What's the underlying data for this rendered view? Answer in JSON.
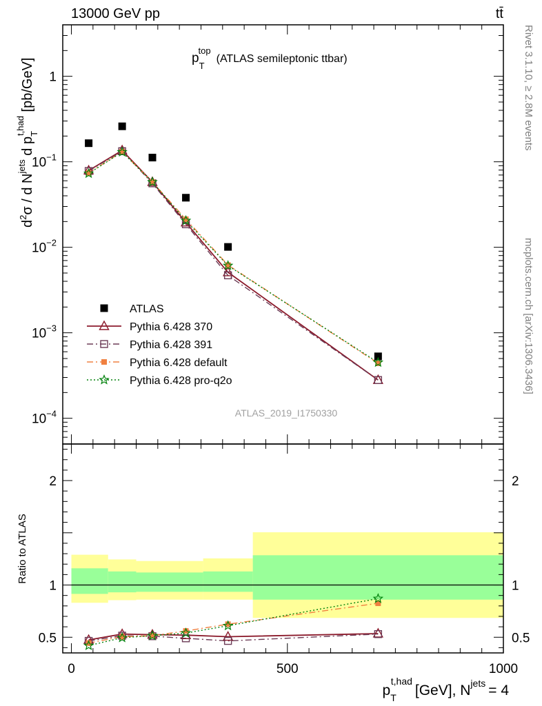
{
  "header": {
    "process": "13000 GeV pp",
    "channel": "tt̄"
  },
  "side_labels": {
    "rivet": "Rivet 3.1.10, ≥ 2.8M events",
    "mcplots": "mcplots.cern.ch [arXiv:1306.3436]"
  },
  "analysis_id": "ATLAS_2019_I1750330",
  "chart_data": [
    {
      "panel": "main",
      "type": "scatter",
      "title": "p_T^top (ATLAS semileptonic ttbar)",
      "title_parts": {
        "main": "p",
        "sub": "T",
        "sup": "top",
        "rest": "(ATLAS semileptonic ttbar)"
      },
      "ylabel": "d²σ / d N^jets d p_T^t,had [pb/GeV]",
      "y_scale": "log",
      "xlim": [
        -20,
        1000
      ],
      "ylim": [
        5e-05,
        4
      ],
      "y_ticks": [
        {
          "value": 1,
          "label": "1"
        },
        {
          "value": 0.1,
          "base": "10",
          "exp": "−1"
        },
        {
          "value": 0.01,
          "base": "10",
          "exp": "−2"
        },
        {
          "value": 0.001,
          "base": "10",
          "exp": "−3"
        },
        {
          "value": 0.0001,
          "base": "10",
          "exp": "−4"
        }
      ],
      "legend_position": "lower-left",
      "series": [
        {
          "name": "ATLAS",
          "marker": "filled-square",
          "color": "#000000",
          "x": [
            40,
            117.5,
            187.5,
            265,
            362.5,
            710
          ],
          "y": [
            0.165,
            0.26,
            0.112,
            0.038,
            0.0101,
            0.00053
          ]
        },
        {
          "name": "Pythia 6.428 370",
          "marker": "open-triangle",
          "line": "solid",
          "color": "#8b1a2b",
          "x": [
            40,
            117.5,
            187.5,
            265,
            362.5,
            710
          ],
          "y": [
            0.079,
            0.136,
            0.058,
            0.0195,
            0.0051,
            0.00028
          ]
        },
        {
          "name": "Pythia 6.428 391",
          "marker": "open-square",
          "line": "dash-dot",
          "color": "#6b3a55",
          "x": [
            40,
            117.5,
            187.5,
            265,
            362.5,
            710
          ],
          "y": [
            0.078,
            0.133,
            0.056,
            0.0186,
            0.0047,
            0.00028
          ]
        },
        {
          "name": "Pythia 6.428 default",
          "marker": "filled-square-small",
          "line": "dash-dot",
          "color": "#f08040",
          "x": [
            40,
            117.5,
            187.5,
            265,
            362.5,
            710
          ],
          "y": [
            0.074,
            0.131,
            0.058,
            0.0213,
            0.0062,
            0.00044
          ]
        },
        {
          "name": "Pythia 6.428 pro-q2o",
          "marker": "open-star",
          "line": "dotted",
          "color": "#00800a",
          "x": [
            40,
            117.5,
            187.5,
            265,
            362.5,
            710
          ],
          "y": [
            0.073,
            0.13,
            0.058,
            0.0205,
            0.0061,
            0.00045
          ]
        }
      ]
    },
    {
      "panel": "ratio",
      "type": "line",
      "ylabel": "Ratio to ATLAS",
      "xlabel": "p_T^t,had [GeV], N^jets = 4",
      "xlabel_parts": {
        "main": "p",
        "sub": "T",
        "sup": "t,had",
        "rest": "[GeV], N",
        "sup2": "jets",
        "tail": "= 4"
      },
      "xlim": [
        -20,
        1000
      ],
      "ylim": [
        0.35,
        2.35
      ],
      "x_ticks": [
        0,
        500,
        1000
      ],
      "y_ticks": [
        0.5,
        1,
        2
      ],
      "reference_line": 1,
      "bands": [
        {
          "x0": 0,
          "x1": 85,
          "outer": [
            0.83,
            1.29
          ],
          "inner": [
            0.915,
            1.16
          ]
        },
        {
          "x0": 85,
          "x1": 150,
          "outer": [
            0.855,
            1.245
          ],
          "inner": [
            0.93,
            1.13
          ]
        },
        {
          "x0": 150,
          "x1": 305,
          "outer": [
            0.86,
            1.23
          ],
          "inner": [
            0.935,
            1.12
          ]
        },
        {
          "x0": 305,
          "x1": 420,
          "outer": [
            0.86,
            1.255
          ],
          "inner": [
            0.935,
            1.13
          ]
        },
        {
          "x0": 420,
          "x1": 1000,
          "outer": [
            0.685,
            1.505
          ],
          "inner": [
            0.86,
            1.285
          ]
        }
      ],
      "band_colors": {
        "outer": "#ffff99",
        "inner": "#99ff99"
      },
      "series": [
        {
          "name": "Pythia 6.428 370",
          "marker": "open-triangle",
          "line": "solid",
          "color": "#8b1a2b",
          "x": [
            40,
            117.5,
            187.5,
            265,
            362.5,
            710
          ],
          "y": [
            0.475,
            0.53,
            0.525,
            0.52,
            0.505,
            0.535
          ]
        },
        {
          "name": "Pythia 6.428 391",
          "marker": "open-square",
          "line": "dash-dot",
          "color": "#6b3a55",
          "x": [
            40,
            117.5,
            187.5,
            265,
            362.5,
            710
          ],
          "y": [
            0.465,
            0.515,
            0.51,
            0.49,
            0.465,
            0.53
          ]
        },
        {
          "name": "Pythia 6.428 default",
          "marker": "filled-square-small",
          "line": "dash-dot",
          "color": "#f08040",
          "x": [
            40,
            117.5,
            187.5,
            265,
            362.5,
            710
          ],
          "y": [
            0.445,
            0.505,
            0.515,
            0.56,
            0.625,
            0.825
          ]
        },
        {
          "name": "Pythia 6.428 pro-q2o",
          "marker": "open-star",
          "line": "dotted",
          "color": "#00800a",
          "x": [
            40,
            117.5,
            187.5,
            265,
            362.5,
            710
          ],
          "y": [
            0.42,
            0.495,
            0.515,
            0.54,
            0.61,
            0.87
          ]
        }
      ]
    }
  ]
}
